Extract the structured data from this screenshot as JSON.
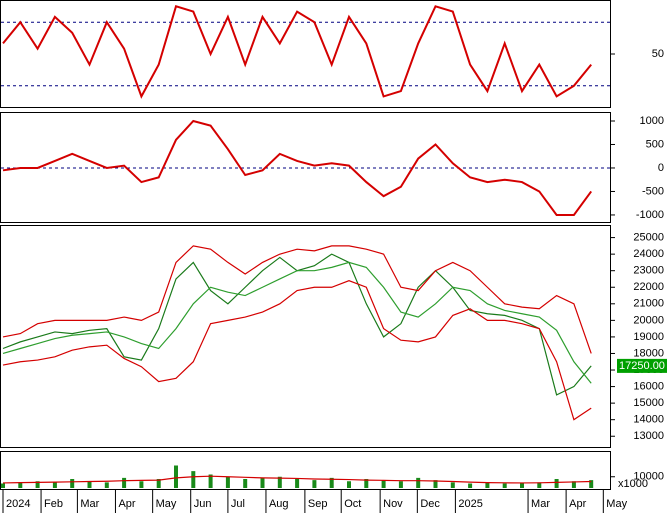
{
  "chart_data": [
    {
      "type": "line",
      "ylim": [
        0,
        100
      ],
      "yticks": [
        50
      ],
      "hlines": [
        80,
        20
      ],
      "x": [
        0,
        2,
        4,
        6,
        8,
        10,
        12,
        14,
        16,
        18,
        20,
        22,
        24,
        26,
        28,
        30,
        32,
        34,
        36,
        38,
        40,
        42,
        44,
        46,
        48,
        50,
        52,
        54,
        56,
        58,
        60,
        62,
        64,
        66,
        68
      ],
      "series": [
        {
          "color": "#d40000",
          "values": [
            60,
            80,
            55,
            85,
            70,
            40,
            80,
            55,
            10,
            40,
            95,
            90,
            50,
            85,
            40,
            85,
            60,
            90,
            80,
            40,
            85,
            60,
            10,
            15,
            60,
            95,
            90,
            40,
            15,
            60,
            15,
            40,
            10,
            20,
            40
          ]
        }
      ]
    },
    {
      "type": "line",
      "ylim": [
        -1150,
        1170
      ],
      "yticks": [
        1000,
        500,
        0,
        -500,
        -1000
      ],
      "hlines": [
        0
      ],
      "x": [
        0,
        2,
        4,
        6,
        8,
        10,
        12,
        14,
        16,
        18,
        20,
        22,
        24,
        26,
        28,
        30,
        32,
        34,
        36,
        38,
        40,
        42,
        44,
        46,
        48,
        50,
        52,
        54,
        56,
        58,
        60,
        62,
        64,
        66,
        68
      ],
      "series": [
        {
          "color": "#d40000",
          "values": [
            -50,
            0,
            0,
            150,
            300,
            150,
            0,
            50,
            -300,
            -200,
            600,
            1000,
            900,
            400,
            -150,
            -50,
            300,
            150,
            50,
            100,
            50,
            -300,
            -600,
            -400,
            200,
            500,
            100,
            -200,
            -300,
            -250,
            -300,
            -500,
            -1000,
            -1000,
            -500
          ]
        }
      ]
    },
    {
      "type": "line",
      "ylim": [
        12350,
        25700
      ],
      "yticks": [
        13000,
        14000,
        15000,
        16000,
        17000,
        18000,
        19000,
        20000,
        21000,
        22000,
        23000,
        24000,
        25000
      ],
      "annotations": [
        {
          "x": 68,
          "y": 17250,
          "label": "17250.00"
        }
      ],
      "x": [
        0,
        2,
        4,
        6,
        8,
        10,
        12,
        14,
        16,
        18,
        20,
        22,
        24,
        26,
        28,
        30,
        32,
        34,
        36,
        38,
        40,
        42,
        44,
        46,
        48,
        50,
        52,
        54,
        56,
        58,
        60,
        62,
        64,
        66,
        68
      ],
      "series": [
        {
          "color": "#1a7a1a",
          "values": [
            18300,
            18700,
            19000,
            19300,
            19200,
            19400,
            19500,
            17800,
            17600,
            19500,
            22500,
            23500,
            21800,
            21000,
            22000,
            23000,
            23800,
            23000,
            23300,
            24000,
            23500,
            21000,
            19000,
            19800,
            22000,
            23000,
            22000,
            20600,
            20400,
            20300,
            20000,
            19500,
            15500,
            16000,
            17250
          ]
        },
        {
          "color": "#2e9e2e",
          "values": [
            18000,
            18300,
            18600,
            18900,
            19100,
            19200,
            19300,
            19000,
            18600,
            18300,
            19500,
            21000,
            22000,
            21700,
            21500,
            22000,
            22500,
            23000,
            23000,
            23200,
            23500,
            23200,
            22000,
            20500,
            20200,
            21000,
            22000,
            21800,
            21000,
            20600,
            20400,
            20200,
            19400,
            17500,
            16200
          ]
        },
        {
          "color": "#d40000",
          "values": [
            19000,
            19200,
            19800,
            20000,
            20000,
            20000,
            20000,
            20200,
            20000,
            20500,
            23500,
            24500,
            24300,
            23500,
            22800,
            23500,
            24000,
            24300,
            24200,
            24500,
            24500,
            24300,
            24000,
            22000,
            21800,
            23000,
            23500,
            23000,
            22000,
            21000,
            20800,
            20700,
            21500,
            21000,
            18000
          ]
        },
        {
          "color": "#d40000",
          "values": [
            17300,
            17500,
            17600,
            17800,
            18200,
            18400,
            18500,
            17700,
            17200,
            16300,
            16500,
            17500,
            19800,
            20000,
            20200,
            20500,
            21000,
            21800,
            22000,
            22000,
            22400,
            22000,
            19500,
            18800,
            18700,
            19000,
            20300,
            20700,
            20000,
            20000,
            19800,
            19500,
            17500,
            14000,
            14700
          ]
        }
      ]
    },
    {
      "type": "bar",
      "ylim": [
        0,
        32000
      ],
      "yticks": [
        10000
      ],
      "y_unit_label": "x1000",
      "x": [
        0,
        2,
        4,
        6,
        8,
        10,
        12,
        14,
        16,
        18,
        20,
        22,
        24,
        26,
        28,
        30,
        32,
        34,
        36,
        38,
        40,
        42,
        44,
        46,
        48,
        50,
        52,
        54,
        56,
        58,
        60,
        62,
        64,
        66,
        68
      ],
      "xticks": [
        {
          "value": 0,
          "label": "2024"
        },
        {
          "value": 4.4,
          "label": "Feb"
        },
        {
          "value": 8.6,
          "label": "Mar"
        },
        {
          "value": 13,
          "label": "Apr"
        },
        {
          "value": 17.3,
          "label": "May"
        },
        {
          "value": 21.7,
          "label": "Jun"
        },
        {
          "value": 26,
          "label": "Jul"
        },
        {
          "value": 30.4,
          "label": "Aug"
        },
        {
          "value": 34.9,
          "label": "Sep"
        },
        {
          "value": 39.1,
          "label": "Oct"
        },
        {
          "value": 43.6,
          "label": "Nov"
        },
        {
          "value": 47.9,
          "label": "Dec"
        },
        {
          "value": 52.3,
          "label": "2025"
        },
        {
          "value": 60.7,
          "label": "Mar"
        },
        {
          "value": 65.1,
          "label": "Apr"
        },
        {
          "value": 69.4,
          "label": "May"
        }
      ],
      "series": [
        {
          "type": "bar",
          "color": "#1a8a1a",
          "values": [
            4000,
            5000,
            6000,
            5000,
            8000,
            6000,
            5000,
            9000,
            6000,
            8000,
            20000,
            15000,
            12000,
            10000,
            8000,
            9000,
            10000,
            8000,
            7000,
            9000,
            6000,
            8000,
            7000,
            6000,
            9000,
            7000,
            5000,
            4000,
            5000,
            4000,
            4000,
            5000,
            8000,
            6000,
            7000
          ]
        },
        {
          "type": "line",
          "color": "#d40000",
          "values": [
            4500,
            4800,
            5000,
            5200,
            5500,
            5800,
            6000,
            6500,
            6800,
            7000,
            9000,
            10000,
            10500,
            10000,
            9500,
            9000,
            8800,
            8500,
            8000,
            7800,
            7500,
            7000,
            6800,
            6500,
            6500,
            6200,
            5800,
            5200,
            4800,
            4600,
            4500,
            4600,
            5000,
            5400,
            5800
          ]
        }
      ]
    }
  ]
}
